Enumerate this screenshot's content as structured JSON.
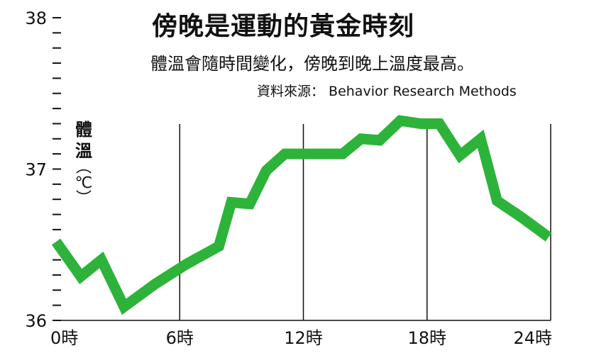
{
  "header": {
    "title": "傍晚是運動的黃金時刻",
    "subtitle": "體溫會隨時間變化，傍晚到晚上溫度最高。",
    "source": "資料來源： Behavior Research Methods"
  },
  "chart_data": {
    "type": "line",
    "title": "傍晚是運動的黃金時刻",
    "subtitle": "體溫會隨時間變化，傍晚到晚上溫度最高。",
    "source": "資料來源： Behavior Research Methods",
    "ylabel": "體溫",
    "ylabel_unit": "℃",
    "xlabel": "",
    "xlim": [
      0,
      24
    ],
    "ylim": [
      36,
      38
    ],
    "x_tick_labels": [
      {
        "x": 0,
        "label": "0時"
      },
      {
        "x": 6,
        "label": "6時"
      },
      {
        "x": 12,
        "label": "12時"
      },
      {
        "x": 18,
        "label": "18時"
      },
      {
        "x": 24,
        "label": "24時"
      }
    ],
    "y_tick_labels": [
      {
        "y": 36,
        "label": "36"
      },
      {
        "y": 37,
        "label": "37"
      },
      {
        "y": 38,
        "label": "38"
      }
    ],
    "y_minor_ticks": [
      36.1,
      36.2,
      36.3,
      36.4,
      36.5,
      36.6,
      36.7,
      36.8,
      36.9,
      37.1,
      37.2,
      37.3,
      37.4,
      37.5,
      37.6,
      37.7,
      37.8,
      37.9
    ],
    "vertical_gridlines_x": [
      6,
      12,
      18,
      24
    ],
    "line_color": "#2db33a",
    "series": [
      {
        "x": [
          0,
          1.2,
          2.2,
          3.3,
          4.8,
          6.3,
          7.9,
          8.5,
          9.4,
          10.2,
          11.1,
          12.5,
          13.9,
          14.8,
          15.7,
          16.7,
          17.7,
          18.6,
          19.6,
          20.6,
          21.4,
          22.6,
          23.9
        ],
        "y": [
          36.52,
          36.29,
          36.4,
          36.09,
          36.24,
          36.37,
          36.49,
          36.78,
          36.77,
          36.99,
          37.1,
          37.1,
          37.1,
          37.2,
          37.19,
          37.32,
          37.3,
          37.3,
          37.09,
          37.2,
          36.79,
          36.68,
          36.55
        ]
      }
    ]
  }
}
